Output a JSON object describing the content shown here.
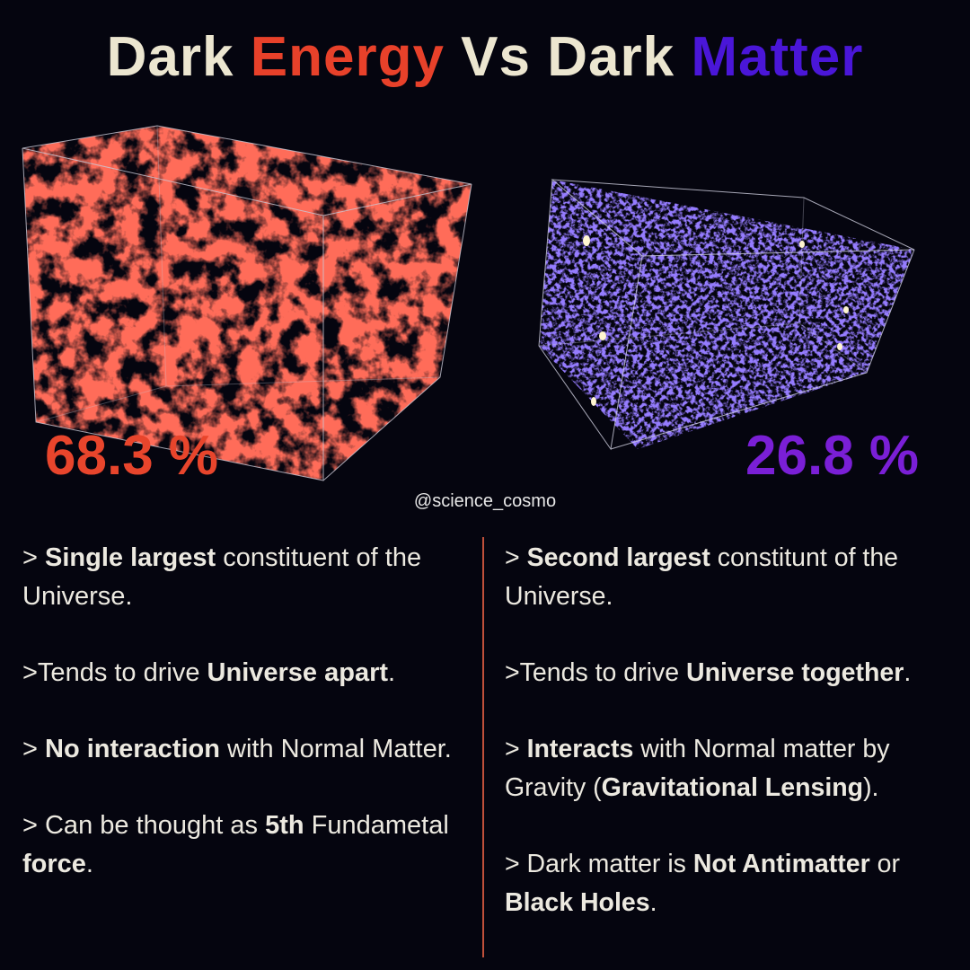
{
  "title": [
    {
      "text": "Dark ",
      "color": "#ece6d0"
    },
    {
      "text": "Energy",
      "color": "#e8412a"
    },
    {
      "text": " Vs ",
      "color": "#ece6d0"
    },
    {
      "text": "Dark ",
      "color": "#ece6d0"
    },
    {
      "text": "Matter",
      "color": "#4a16d8"
    }
  ],
  "left": {
    "percent": "68.3 %",
    "color": "#e8452c",
    "bullets": [
      [
        {
          "text": "> ",
          "bold": false
        },
        {
          "text": "Single largest",
          "bold": true
        },
        {
          "text": " constituent of the Universe.",
          "bold": false
        }
      ],
      [
        {
          "text": ">Tends to drive ",
          "bold": false
        },
        {
          "text": "Universe apart",
          "bold": true
        },
        {
          "text": ".",
          "bold": false
        }
      ],
      [
        {
          "text": "> ",
          "bold": false
        },
        {
          "text": "No interaction",
          "bold": true
        },
        {
          "text": " with Normal Matter.",
          "bold": false
        }
      ],
      [
        {
          "text": "> Can be thought as ",
          "bold": false
        },
        {
          "text": "5th",
          "bold": true
        },
        {
          "text": " Fundametal ",
          "bold": false
        },
        {
          "text": "force",
          "bold": true
        },
        {
          "text": ".",
          "bold": false
        }
      ]
    ]
  },
  "right": {
    "percent": "26.8 %",
    "color": "#7a1fd6",
    "bullets": [
      [
        {
          "text": "> ",
          "bold": false
        },
        {
          "text": "Second largest",
          "bold": true
        },
        {
          "text": " constitunt of the Universe.",
          "bold": false
        }
      ],
      [
        {
          "text": ">Tends to drive ",
          "bold": false
        },
        {
          "text": "Universe together",
          "bold": true
        },
        {
          "text": ".",
          "bold": false
        }
      ],
      [
        {
          "text": "> ",
          "bold": false
        },
        {
          "text": "Interacts",
          "bold": true
        },
        {
          "text": " with Normal matter by Gravity (",
          "bold": false
        },
        {
          "text": "Gravitational Lensing",
          "bold": true
        },
        {
          "text": ").",
          "bold": false
        }
      ],
      [
        {
          "text": "> Dark matter is ",
          "bold": false
        },
        {
          "text": "Not Antimatter",
          "bold": true
        },
        {
          "text": " or ",
          "bold": false
        },
        {
          "text": "Black Holes",
          "bold": true
        },
        {
          "text": ".",
          "bold": false
        }
      ]
    ]
  },
  "handle": "@science_cosmo"
}
